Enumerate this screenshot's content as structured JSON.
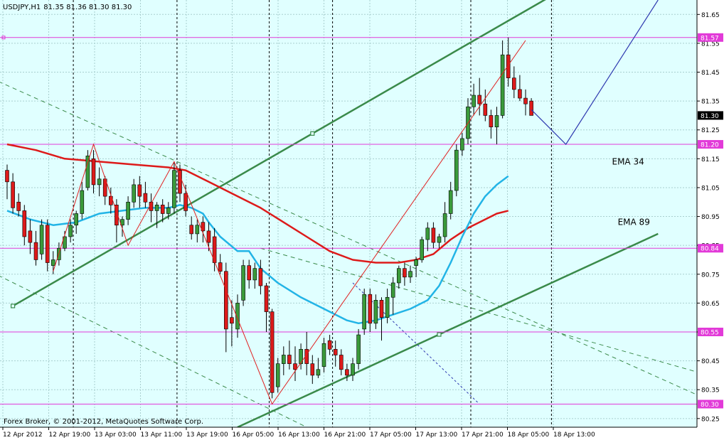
{
  "header": {
    "symbol": "USDJPY,H1",
    "ohlc": "81.35 81.36 81.30 81.30"
  },
  "footer": {
    "copyright": "Forex Broker, © 2001-2012, MetaQuotes Software Corp."
  },
  "colors": {
    "background": "#e0ffff",
    "grid": "#a9cfcf",
    "bull": "#3a9a3a",
    "bear": "#dd1a1a",
    "ema34": "#22b4e6",
    "ema89": "#dd1a1a",
    "channel": "#3a8a4a",
    "hline": "#e23ad8",
    "zigzag": "#e02020",
    "projection": "#2f3ab0"
  },
  "chart_data": {
    "type": "candlestick",
    "y_range": [
      80.22,
      81.7
    ],
    "y_ticks": [
      "81.65",
      "81.55",
      "81.45",
      "81.35",
      "81.25",
      "81.15",
      "81.05",
      "80.95",
      "80.85",
      "80.75",
      "80.65",
      "80.55",
      "80.45",
      "80.35",
      "80.25"
    ],
    "x_ticks": [
      "12 Apr 2012",
      "12 Apr 19:00",
      "13 Apr 03:00",
      "13 Apr 11:00",
      "13 Apr 19:00",
      "16 Apr 05:00",
      "16 Apr 13:00",
      "16 Apr 21:00",
      "17 Apr 05:00",
      "17 Apr 13:00",
      "17 Apr 21:00",
      "18 Apr 05:00",
      "18 Apr 13:00"
    ],
    "current_price": "81.30",
    "horizontal_levels": [
      {
        "label": "81.57",
        "value": 81.57
      },
      {
        "label": "81.20",
        "value": 81.2
      },
      {
        "label": "80.84",
        "value": 80.84
      },
      {
        "label": "80.55",
        "value": 80.55
      },
      {
        "label": "80.30",
        "value": 80.3
      }
    ],
    "annotations": [
      {
        "text": "EMA 34",
        "x": 105,
        "y": 81.13
      },
      {
        "text": "EMA 89",
        "x": 106,
        "y": 80.92
      }
    ],
    "candles": [
      [
        81.11,
        81.13,
        81.01,
        81.07
      ],
      [
        81.07,
        81.1,
        80.96,
        80.98
      ],
      [
        81.0,
        81.03,
        80.95,
        80.97
      ],
      [
        80.97,
        80.99,
        80.85,
        80.88
      ],
      [
        80.9,
        80.94,
        80.82,
        80.86
      ],
      [
        80.86,
        80.9,
        80.78,
        80.8
      ],
      [
        80.82,
        80.94,
        80.8,
        80.92
      ],
      [
        80.92,
        80.94,
        80.76,
        80.79
      ],
      [
        80.78,
        80.83,
        80.75,
        80.8
      ],
      [
        80.8,
        80.86,
        80.78,
        80.84
      ],
      [
        80.84,
        80.9,
        80.83,
        80.88
      ],
      [
        80.88,
        80.94,
        80.86,
        80.92
      ],
      [
        80.92,
        80.97,
        80.89,
        80.96
      ],
      [
        80.96,
        81.07,
        80.94,
        81.04
      ],
      [
        81.05,
        81.18,
        81.04,
        81.16
      ],
      [
        81.15,
        81.18,
        81.03,
        81.06
      ],
      [
        81.06,
        81.12,
        81.02,
        81.08
      ],
      [
        81.08,
        81.09,
        80.99,
        81.02
      ],
      [
        81.02,
        81.05,
        80.96,
        80.99
      ],
      [
        80.99,
        81.01,
        80.86,
        80.92
      ],
      [
        80.92,
        80.95,
        80.88,
        80.94
      ],
      [
        80.94,
        81.02,
        80.92,
        81.0
      ],
      [
        81.0,
        81.08,
        80.98,
        81.06
      ],
      [
        81.06,
        81.09,
        80.98,
        81.02
      ],
      [
        81.03,
        81.07,
        80.98,
        81.0
      ],
      [
        81.0,
        81.03,
        80.93,
        80.97
      ],
      [
        80.97,
        81.0,
        80.91,
        80.99
      ],
      [
        80.99,
        81.01,
        80.93,
        80.96
      ],
      [
        80.96,
        81.0,
        80.94,
        80.98
      ],
      [
        80.98,
        81.14,
        80.96,
        81.11
      ],
      [
        81.11,
        81.13,
        81.0,
        81.03
      ],
      [
        81.03,
        81.06,
        80.95,
        80.97
      ],
      [
        80.92,
        80.95,
        80.87,
        80.89
      ],
      [
        80.89,
        80.94,
        80.86,
        80.92
      ],
      [
        80.93,
        80.95,
        80.86,
        80.9
      ],
      [
        80.9,
        80.93,
        80.83,
        80.86
      ],
      [
        80.88,
        80.91,
        80.76,
        80.79
      ],
      [
        80.79,
        80.82,
        80.75,
        80.76
      ],
      [
        80.76,
        80.79,
        80.48,
        80.56
      ],
      [
        80.6,
        80.66,
        80.5,
        80.58
      ],
      [
        80.56,
        80.68,
        80.53,
        80.65
      ],
      [
        80.66,
        80.8,
        80.64,
        80.78
      ],
      [
        80.78,
        80.8,
        80.7,
        80.73
      ],
      [
        80.73,
        80.79,
        80.7,
        80.77
      ],
      [
        80.77,
        80.8,
        80.68,
        80.71
      ],
      [
        80.71,
        80.72,
        80.55,
        80.62
      ],
      [
        80.62,
        80.63,
        80.32,
        80.34
      ],
      [
        80.36,
        80.46,
        80.34,
        80.44
      ],
      [
        80.44,
        80.5,
        80.4,
        80.47
      ],
      [
        80.47,
        80.52,
        80.42,
        80.44
      ],
      [
        80.44,
        80.5,
        80.38,
        80.42
      ],
      [
        80.44,
        80.51,
        80.42,
        80.49
      ],
      [
        80.49,
        80.55,
        80.4,
        80.44
      ],
      [
        80.44,
        80.47,
        80.37,
        80.4
      ],
      [
        80.4,
        80.46,
        80.39,
        80.42
      ],
      [
        80.43,
        80.53,
        80.41,
        80.51
      ],
      [
        80.52,
        80.54,
        80.47,
        80.49
      ],
      [
        80.49,
        80.52,
        80.43,
        80.47
      ],
      [
        80.47,
        80.49,
        80.4,
        80.42
      ],
      [
        80.42,
        80.44,
        80.38,
        80.4
      ],
      [
        80.4,
        80.46,
        80.38,
        80.44
      ],
      [
        80.44,
        80.56,
        80.42,
        80.54
      ],
      [
        80.56,
        80.7,
        80.54,
        80.68
      ],
      [
        80.68,
        80.7,
        80.55,
        80.58
      ],
      [
        80.58,
        80.68,
        80.56,
        80.66
      ],
      [
        80.66,
        80.67,
        80.52,
        80.6
      ],
      [
        80.6,
        80.7,
        80.58,
        80.67
      ],
      [
        80.67,
        80.74,
        80.61,
        80.72
      ],
      [
        80.72,
        80.78,
        80.7,
        80.77
      ],
      [
        80.77,
        80.79,
        80.71,
        80.74
      ],
      [
        80.74,
        80.78,
        80.72,
        80.76
      ],
      [
        80.78,
        80.81,
        80.74,
        80.8
      ],
      [
        80.8,
        80.88,
        80.79,
        80.87
      ],
      [
        80.87,
        80.93,
        80.83,
        80.91
      ],
      [
        80.91,
        80.93,
        80.84,
        80.86
      ],
      [
        80.86,
        80.89,
        80.84,
        80.88
      ],
      [
        80.88,
        81.0,
        80.86,
        80.96
      ],
      [
        80.96,
        81.07,
        80.94,
        81.04
      ],
      [
        81.04,
        81.2,
        81.02,
        81.18
      ],
      [
        81.18,
        81.24,
        81.16,
        81.22
      ],
      [
        81.22,
        81.36,
        81.2,
        81.33
      ],
      [
        81.33,
        81.41,
        81.3,
        81.37
      ],
      [
        81.37,
        81.43,
        81.3,
        81.34
      ],
      [
        81.34,
        81.39,
        81.28,
        81.3
      ],
      [
        81.3,
        81.32,
        81.22,
        81.26
      ],
      [
        81.26,
        81.33,
        81.2,
        81.3
      ],
      [
        81.3,
        81.56,
        81.29,
        81.51
      ],
      [
        81.51,
        81.57,
        81.4,
        81.43
      ],
      [
        81.43,
        81.47,
        81.36,
        81.39
      ],
      [
        81.39,
        81.44,
        81.35,
        81.36
      ],
      [
        81.36,
        81.39,
        81.3,
        81.34
      ],
      [
        81.35,
        81.36,
        81.3,
        81.3
      ]
    ],
    "ema34": [
      [
        0,
        80.97
      ],
      [
        4,
        80.94
      ],
      [
        8,
        80.92
      ],
      [
        12,
        80.93
      ],
      [
        16,
        80.96
      ],
      [
        20,
        80.97
      ],
      [
        24,
        80.98
      ],
      [
        28,
        80.98
      ],
      [
        30,
        80.99
      ],
      [
        32,
        80.98
      ],
      [
        34,
        80.96
      ],
      [
        35,
        80.93
      ],
      [
        37,
        80.88
      ],
      [
        40,
        80.83
      ],
      [
        42,
        80.83
      ],
      [
        44,
        80.77
      ],
      [
        47,
        80.72
      ],
      [
        51,
        80.67
      ],
      [
        55,
        80.63
      ],
      [
        59,
        80.59
      ],
      [
        61,
        80.58
      ],
      [
        64,
        80.59
      ],
      [
        67,
        80.61
      ],
      [
        70,
        80.63
      ],
      [
        73,
        80.66
      ],
      [
        75,
        80.71
      ],
      [
        77,
        80.79
      ],
      [
        79,
        80.88
      ],
      [
        81,
        80.96
      ],
      [
        83,
        81.02
      ],
      [
        85,
        81.06
      ],
      [
        87,
        81.09
      ]
    ],
    "ema89": [
      [
        0,
        81.2
      ],
      [
        5,
        81.18
      ],
      [
        10,
        81.15
      ],
      [
        16,
        81.14
      ],
      [
        22,
        81.13
      ],
      [
        28,
        81.12
      ],
      [
        31,
        81.11
      ],
      [
        35,
        81.07
      ],
      [
        40,
        81.02
      ],
      [
        44,
        80.98
      ],
      [
        48,
        80.93
      ],
      [
        52,
        80.88
      ],
      [
        56,
        80.83
      ],
      [
        60,
        80.8
      ],
      [
        64,
        80.79
      ],
      [
        68,
        80.79
      ],
      [
        71,
        80.8
      ],
      [
        74,
        80.82
      ],
      [
        77,
        80.87
      ],
      [
        80,
        80.91
      ],
      [
        83,
        80.94
      ],
      [
        85,
        80.96
      ],
      [
        87,
        80.97
      ]
    ],
    "upper_channel": [
      [
        1,
        80.64
      ],
      [
        95,
        81.72
      ]
    ],
    "lower_channel": [
      [
        40,
        80.22
      ],
      [
        113,
        80.89
      ]
    ],
    "dashed_channel": [
      [
        -4,
        81.44
      ],
      [
        120,
        80.33
      ]
    ],
    "dashed_channel_lower": [
      [
        -4,
        80.77
      ],
      [
        52,
        80.22
      ]
    ],
    "dashed_extra": [
      [
        44,
        80.84
      ],
      [
        120,
        80.41
      ]
    ],
    "dashed_short": [
      [
        60,
        80.72
      ],
      [
        82,
        80.3
      ]
    ],
    "zigzag": [
      [
        8,
        80.76
      ],
      [
        15,
        81.2
      ],
      [
        21,
        80.85
      ],
      [
        29,
        81.14
      ],
      [
        46,
        80.3
      ],
      [
        90,
        81.56
      ]
    ],
    "projection": [
      [
        91,
        81.32
      ],
      [
        97,
        81.2
      ],
      [
        113,
        81.7
      ]
    ],
    "vertical_dashed": [
      11,
      29,
      45,
      56,
      80,
      94
    ]
  }
}
